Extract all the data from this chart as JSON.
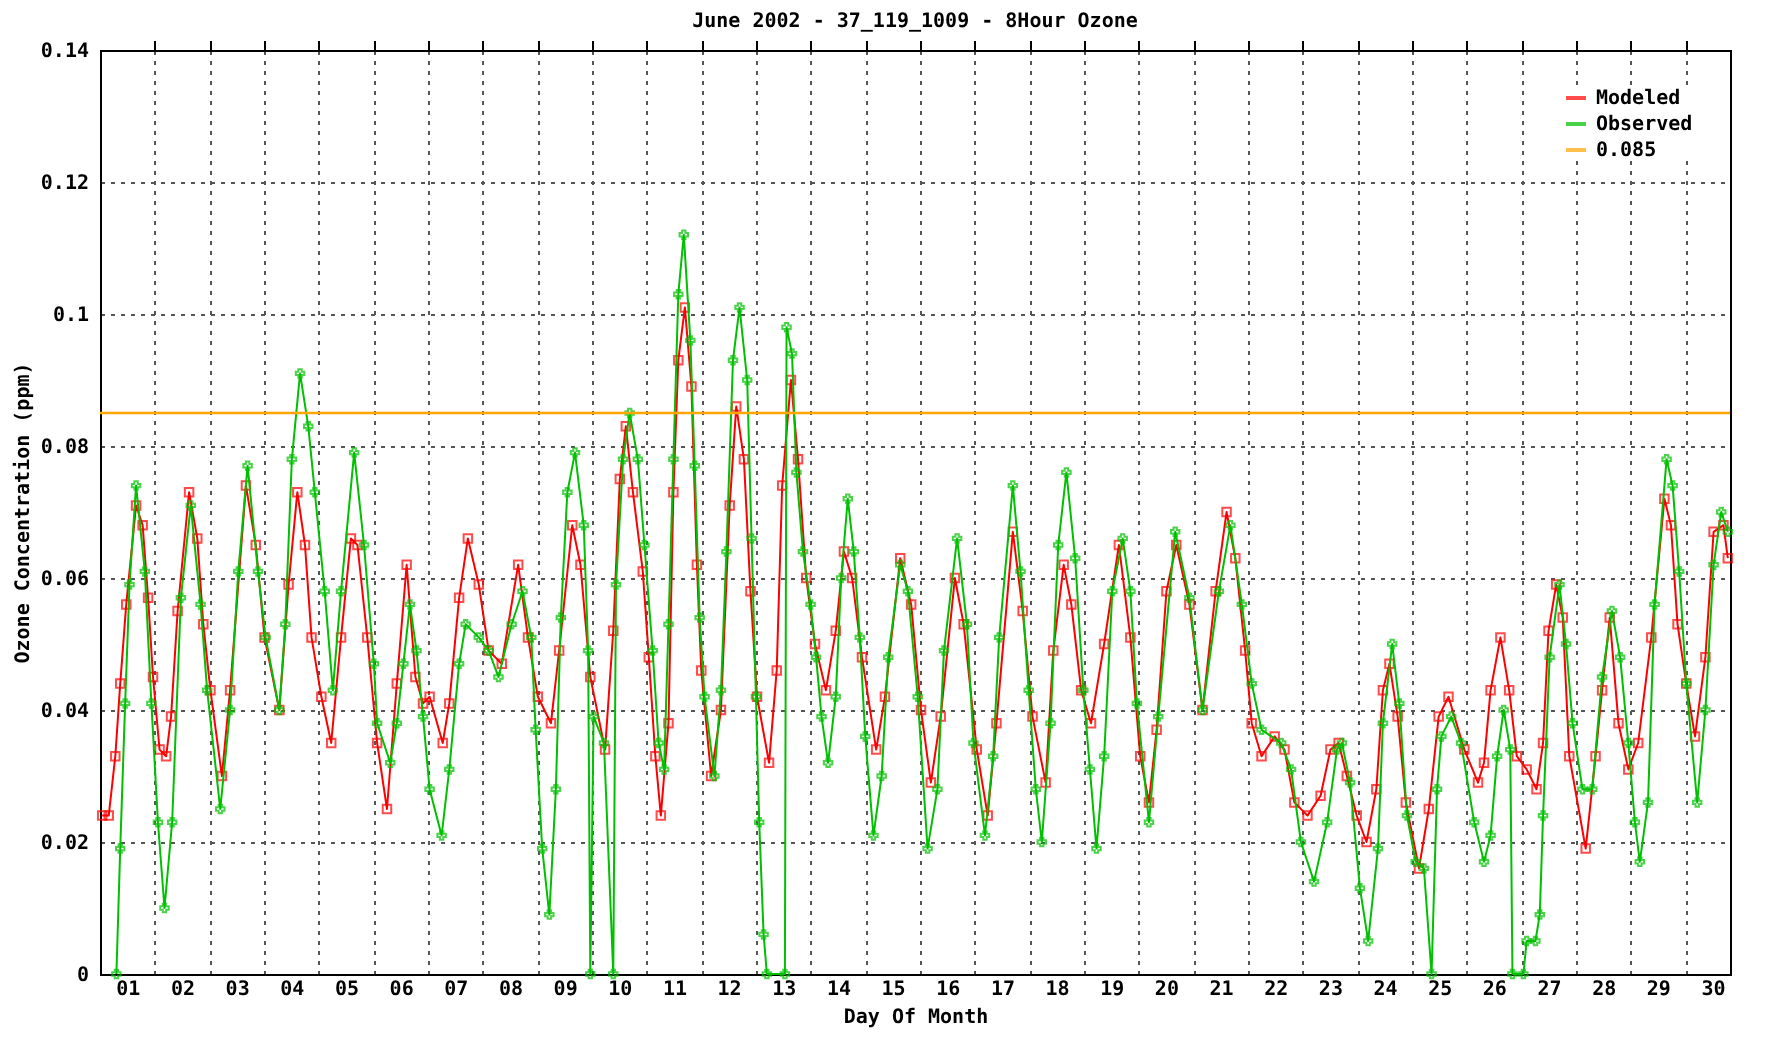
{
  "chart_data": {
    "type": "line",
    "title": "June 2002 - 37_119_1009 - 8Hour Ozone",
    "xlabel": "Day Of Month",
    "ylabel": "Ozone Concentration (ppm)",
    "xlim": [
      1,
      30.82
    ],
    "ylim": [
      0,
      0.14
    ],
    "xticks": [
      {
        "value": 1.5,
        "label": "01"
      },
      {
        "value": 2,
        "label": null
      },
      {
        "value": 2.5,
        "label": "02"
      },
      {
        "value": 3,
        "label": null
      },
      {
        "value": 3.5,
        "label": "03"
      },
      {
        "value": 4,
        "label": null
      },
      {
        "value": 4.5,
        "label": "04"
      },
      {
        "value": 5,
        "label": null
      },
      {
        "value": 5.5,
        "label": "05"
      },
      {
        "value": 6,
        "label": null
      },
      {
        "value": 6.5,
        "label": "06"
      },
      {
        "value": 7,
        "label": null
      },
      {
        "value": 7.5,
        "label": "07"
      },
      {
        "value": 8,
        "label": null
      },
      {
        "value": 8.5,
        "label": "08"
      },
      {
        "value": 9,
        "label": null
      },
      {
        "value": 9.5,
        "label": "09"
      },
      {
        "value": 10,
        "label": null
      },
      {
        "value": 10.5,
        "label": "10"
      },
      {
        "value": 11,
        "label": null
      },
      {
        "value": 11.5,
        "label": "11"
      },
      {
        "value": 12,
        "label": null
      },
      {
        "value": 12.5,
        "label": "12"
      },
      {
        "value": 13,
        "label": null
      },
      {
        "value": 13.5,
        "label": "13"
      },
      {
        "value": 14,
        "label": null
      },
      {
        "value": 14.5,
        "label": "14"
      },
      {
        "value": 15,
        "label": null
      },
      {
        "value": 15.5,
        "label": "15"
      },
      {
        "value": 16,
        "label": null
      },
      {
        "value": 16.5,
        "label": "16"
      },
      {
        "value": 17,
        "label": null
      },
      {
        "value": 17.5,
        "label": "17"
      },
      {
        "value": 18,
        "label": null
      },
      {
        "value": 18.5,
        "label": "18"
      },
      {
        "value": 19,
        "label": null
      },
      {
        "value": 19.5,
        "label": "19"
      },
      {
        "value": 20,
        "label": null
      },
      {
        "value": 20.5,
        "label": "20"
      },
      {
        "value": 21,
        "label": null
      },
      {
        "value": 21.5,
        "label": "21"
      },
      {
        "value": 22,
        "label": null
      },
      {
        "value": 22.5,
        "label": "22"
      },
      {
        "value": 23,
        "label": null
      },
      {
        "value": 23.5,
        "label": "23"
      },
      {
        "value": 24,
        "label": null
      },
      {
        "value": 24.5,
        "label": "24"
      },
      {
        "value": 25,
        "label": null
      },
      {
        "value": 25.5,
        "label": "25"
      },
      {
        "value": 26,
        "label": null
      },
      {
        "value": 26.5,
        "label": "26"
      },
      {
        "value": 27,
        "label": null
      },
      {
        "value": 27.5,
        "label": "27"
      },
      {
        "value": 28,
        "label": null
      },
      {
        "value": 28.5,
        "label": "28"
      },
      {
        "value": 29,
        "label": null
      },
      {
        "value": 29.5,
        "label": "29"
      },
      {
        "value": 30,
        "label": null
      },
      {
        "value": 30.5,
        "label": "30"
      }
    ],
    "yticks": [
      0,
      0.02,
      0.04,
      0.06,
      0.08,
      0.1,
      0.12,
      0.14
    ],
    "grid": true,
    "legend": "top right",
    "line_style": "solid",
    "ref_lines": [
      {
        "axis": "y",
        "value": 0.085,
        "label": "0.085",
        "color": "#ffa500"
      }
    ],
    "series": [
      {
        "name": "Modeled",
        "color": "#ff0000",
        "marker": "square",
        "x": [
          1.04,
          1.16,
          1.28,
          1.37,
          1.48,
          1.66,
          1.78,
          1.88,
          1.97,
          2.09,
          2.21,
          2.3,
          2.42,
          2.63,
          2.78,
          2.89,
          3.02,
          3.23,
          3.38,
          3.67,
          3.85,
          4.01,
          4.28,
          4.45,
          4.61,
          4.75,
          4.87,
          5.05,
          5.23,
          5.41,
          5.59,
          5.71,
          5.89,
          6.07,
          6.25,
          6.43,
          6.61,
          6.77,
          6.91,
          7.03,
          7.27,
          7.39,
          7.57,
          7.73,
          7.93,
          8.11,
          8.35,
          8.65,
          8.83,
          9.01,
          9.25,
          9.4,
          9.64,
          9.79,
          9.97,
          10.24,
          10.39,
          10.51,
          10.62,
          10.75,
          10.93,
          11.04,
          11.16,
          11.26,
          11.4,
          11.49,
          11.58,
          11.7,
          11.82,
          11.92,
          12.0,
          12.18,
          12.36,
          12.52,
          12.64,
          12.78,
          12.9,
          13.02,
          13.24,
          13.38,
          13.48,
          13.64,
          13.77,
          13.92,
          14.08,
          14.28,
          14.46,
          14.61,
          14.76,
          14.94,
          15.2,
          15.36,
          15.64,
          15.84,
          16.02,
          16.2,
          16.38,
          16.64,
          16.8,
          17.04,
          17.24,
          17.4,
          17.7,
          17.88,
          18.06,
          18.3,
          18.44,
          18.63,
          18.77,
          18.95,
          19.13,
          19.37,
          19.64,
          19.85,
          20.03,
          20.19,
          20.33,
          20.51,
          20.69,
          20.93,
          21.17,
          21.41,
          21.61,
          21.77,
          21.95,
          22.07,
          22.25,
          22.49,
          22.67,
          22.85,
          23.09,
          23.33,
          23.51,
          23.66,
          23.81,
          23.99,
          24.17,
          24.35,
          24.47,
          24.59,
          24.74,
          24.89,
          25.13,
          25.31,
          25.49,
          25.67,
          25.96,
          26.21,
          26.32,
          26.44,
          26.62,
          26.78,
          26.92,
          27.1,
          27.28,
          27.4,
          27.5,
          27.64,
          27.76,
          27.88,
          28.18,
          28.36,
          28.48,
          28.62,
          28.78,
          28.96,
          29.14,
          29.38,
          29.62,
          29.74,
          29.86,
          30.02,
          30.18,
          30.37,
          30.52,
          30.7,
          30.78
        ],
        "values": [
          0.024,
          0.024,
          0.033,
          0.044,
          0.056,
          0.071,
          0.068,
          0.057,
          0.045,
          0.034,
          0.033,
          0.039,
          0.055,
          0.073,
          0.066,
          0.053,
          0.043,
          0.03,
          0.043,
          0.074,
          0.065,
          0.051,
          0.04,
          0.059,
          0.073,
          0.065,
          0.051,
          0.042,
          0.035,
          0.051,
          0.066,
          0.065,
          0.051,
          0.035,
          0.025,
          0.044,
          0.062,
          0.045,
          0.041,
          0.042,
          0.035,
          0.041,
          0.057,
          0.066,
          0.059,
          0.049,
          0.047,
          0.062,
          0.051,
          0.042,
          0.038,
          0.049,
          0.068,
          0.062,
          0.045,
          0.034,
          0.052,
          0.075,
          0.083,
          0.073,
          0.061,
          0.048,
          0.033,
          0.024,
          0.038,
          0.073,
          0.093,
          0.101,
          0.089,
          0.062,
          0.046,
          0.03,
          0.04,
          0.071,
          0.086,
          0.078,
          0.058,
          0.042,
          0.032,
          0.046,
          0.074,
          0.09,
          0.078,
          0.06,
          0.05,
          0.043,
          0.052,
          0.064,
          0.06,
          0.048,
          0.034,
          0.042,
          0.063,
          0.056,
          0.04,
          0.029,
          0.039,
          0.06,
          0.053,
          0.034,
          0.024,
          0.038,
          0.067,
          0.055,
          0.039,
          0.029,
          0.049,
          0.062,
          0.056,
          0.043,
          0.038,
          0.05,
          0.065,
          0.051,
          0.033,
          0.026,
          0.037,
          0.058,
          0.065,
          0.056,
          0.04,
          0.058,
          0.07,
          0.063,
          0.049,
          0.038,
          0.033,
          0.036,
          0.034,
          0.026,
          0.024,
          0.027,
          0.034,
          0.035,
          0.03,
          0.024,
          0.02,
          0.028,
          0.043,
          0.047,
          0.039,
          0.026,
          0.016,
          0.025,
          0.039,
          0.042,
          0.034,
          0.029,
          0.032,
          0.043,
          0.051,
          0.043,
          0.033,
          0.031,
          0.028,
          0.035,
          0.052,
          0.059,
          0.054,
          0.033,
          0.019,
          0.033,
          0.043,
          0.054,
          0.038,
          0.031,
          0.035,
          0.051,
          0.072,
          0.068,
          0.053,
          0.044,
          0.036,
          0.048,
          0.067,
          0.068,
          0.063
        ]
      },
      {
        "name": "Observed",
        "color": "#00c000",
        "marker": "cross",
        "x": [
          1.3,
          1.37,
          1.46,
          1.54,
          1.66,
          1.82,
          1.94,
          2.06,
          2.18,
          2.32,
          2.48,
          2.66,
          2.84,
          2.96,
          3.2,
          3.38,
          3.53,
          3.7,
          3.89,
          4.03,
          4.28,
          4.39,
          4.51,
          4.66,
          4.81,
          4.93,
          5.11,
          5.26,
          5.41,
          5.65,
          5.83,
          6.01,
          6.07,
          6.31,
          6.43,
          6.55,
          6.67,
          6.79,
          6.91,
          7.03,
          7.25,
          7.39,
          7.57,
          7.69,
          7.93,
          8.11,
          8.29,
          8.53,
          8.73,
          8.89,
          8.97,
          9.09,
          9.22,
          9.34,
          9.43,
          9.55,
          9.69,
          9.85,
          9.93,
          9.97,
          10.03,
          10.22,
          10.39,
          10.44,
          10.57,
          10.69,
          10.84,
          10.96,
          11.11,
          11.22,
          11.32,
          11.4,
          11.49,
          11.58,
          11.68,
          11.8,
          11.88,
          11.97,
          12.06,
          12.24,
          12.36,
          12.46,
          12.58,
          12.7,
          12.84,
          12.92,
          13.0,
          13.06,
          13.14,
          13.2,
          13.53,
          13.56,
          13.66,
          13.74,
          13.86,
          14.0,
          14.1,
          14.2,
          14.32,
          14.46,
          14.56,
          14.68,
          14.79,
          14.9,
          15.0,
          15.15,
          15.3,
          15.42,
          15.64,
          15.78,
          15.96,
          16.14,
          16.32,
          16.44,
          16.68,
          16.86,
          16.98,
          17.19,
          17.34,
          17.45,
          17.7,
          17.84,
          17.99,
          18.12,
          18.23,
          18.39,
          18.53,
          18.68,
          18.84,
          18.99,
          19.11,
          19.23,
          19.37,
          19.52,
          19.71,
          19.85,
          19.97,
          20.19,
          20.36,
          20.67,
          20.93,
          21.17,
          21.47,
          21.68,
          21.89,
          22.07,
          22.25,
          22.61,
          22.79,
          22.97,
          23.21,
          23.45,
          23.63,
          23.72,
          23.87,
          24.05,
          24.2,
          24.38,
          24.47,
          24.64,
          24.77,
          24.91,
          25.07,
          25.22,
          25.36,
          25.46,
          25.54,
          25.72,
          25.9,
          26.14,
          26.32,
          26.44,
          26.56,
          26.68,
          26.8,
          26.84,
          27.04,
          27.1,
          27.26,
          27.34,
          27.4,
          27.52,
          27.7,
          27.82,
          27.94,
          28.12,
          28.3,
          28.48,
          28.66,
          28.81,
          28.96,
          29.08,
          29.17,
          29.32,
          29.44,
          29.66,
          29.77,
          29.89,
          30.02,
          30.22,
          30.37,
          30.52,
          30.66,
          30.78
        ],
        "values": [
          0,
          0.019,
          0.041,
          0.059,
          0.074,
          0.061,
          0.041,
          0.023,
          0.01,
          0.023,
          0.057,
          0.071,
          0.056,
          0.043,
          0.025,
          0.04,
          0.061,
          0.077,
          0.061,
          0.051,
          0.04,
          0.053,
          0.078,
          0.091,
          0.083,
          0.073,
          0.058,
          0.043,
          0.058,
          0.079,
          0.065,
          0.047,
          0.038,
          0.032,
          0.038,
          0.047,
          0.056,
          0.049,
          0.039,
          0.028,
          0.021,
          0.031,
          0.047,
          0.053,
          0.051,
          0.049,
          0.045,
          0.053,
          0.058,
          0.051,
          0.037,
          0.019,
          0.009,
          0.028,
          0.054,
          0.073,
          0.079,
          0.068,
          0.049,
          0,
          0.039,
          0.035,
          0,
          0.059,
          0.078,
          0.085,
          0.078,
          0.065,
          0.049,
          0.035,
          0.031,
          0.053,
          0.078,
          0.103,
          0.112,
          0.096,
          0.077,
          0.054,
          0.042,
          0.03,
          0.043,
          0.064,
          0.093,
          0.101,
          0.09,
          0.066,
          0.042,
          0.023,
          0.006,
          0,
          0,
          0.098,
          0.094,
          0.076,
          0.064,
          0.056,
          0.048,
          0.039,
          0.032,
          0.042,
          0.06,
          0.072,
          0.064,
          0.051,
          0.036,
          0.021,
          0.03,
          0.048,
          0.062,
          0.058,
          0.042,
          0.019,
          0.028,
          0.049,
          0.066,
          0.053,
          0.035,
          0.021,
          0.033,
          0.051,
          0.074,
          0.061,
          0.043,
          0.028,
          0.02,
          0.038,
          0.065,
          0.076,
          0.063,
          0.043,
          0.031,
          0.019,
          0.033,
          0.058,
          0.066,
          0.058,
          0.041,
          0.023,
          0.039,
          0.067,
          0.057,
          0.04,
          0.058,
          0.068,
          0.056,
          0.044,
          0.037,
          0.035,
          0.031,
          0.02,
          0.014,
          0.023,
          0.034,
          0.035,
          0.029,
          0.013,
          0.005,
          0.019,
          0.038,
          0.05,
          0.041,
          0.024,
          0.017,
          0.016,
          0,
          0.028,
          0.036,
          0.039,
          0.035,
          0.023,
          0.017,
          0.021,
          0.033,
          0.04,
          0.034,
          0,
          0,
          0.005,
          0.005,
          0.009,
          0.024,
          0.048,
          0.059,
          0.05,
          0.038,
          0.028,
          0.028,
          0.045,
          0.055,
          0.048,
          0.035,
          0.023,
          0.017,
          0.026,
          0.056,
          0.078,
          0.074,
          0.061,
          0.044,
          0.026,
          0.04,
          0.062,
          0.07,
          0.067
        ]
      }
    ]
  }
}
